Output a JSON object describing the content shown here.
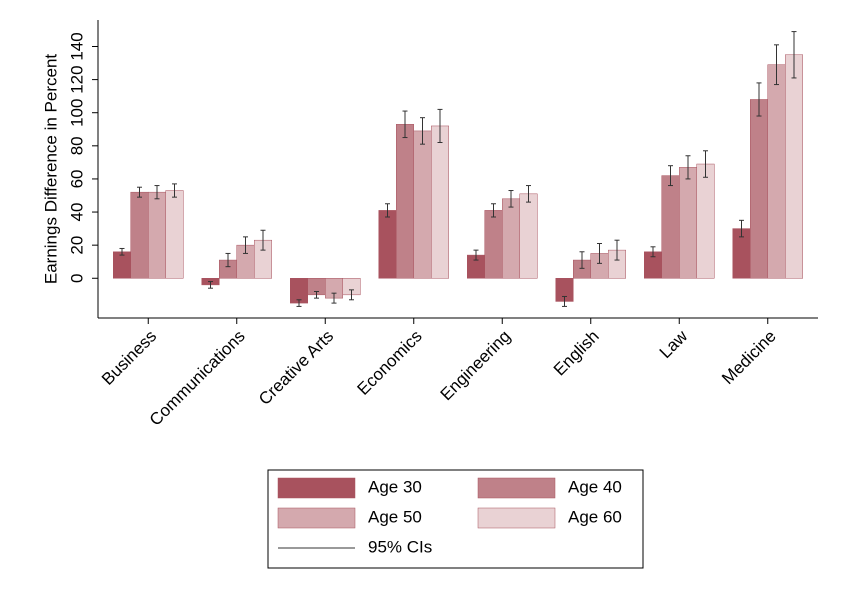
{
  "chart_data": {
    "type": "bar",
    "y_label": "Earnings Difference in Percent",
    "categories": [
      "Business",
      "Communications",
      "Creative Arts",
      "Economics",
      "Engineering",
      "English",
      "Law",
      "Medicine"
    ],
    "series": [
      {
        "name": "Age 30",
        "color": "#a8525e",
        "values": [
          16,
          -4,
          -15,
          41,
          14,
          -14,
          16,
          30
        ],
        "errors": [
          2,
          2,
          2,
          4,
          3,
          3,
          3,
          5
        ]
      },
      {
        "name": "Age 40",
        "color": "#bf8189",
        "values": [
          52,
          11,
          -10,
          93,
          41,
          11,
          62,
          108
        ],
        "errors": [
          3,
          4,
          2,
          8,
          4,
          5,
          6,
          10
        ]
      },
      {
        "name": "Age 50",
        "color": "#d4a9ae",
        "values": [
          52,
          20,
          -12,
          89,
          48,
          15,
          67,
          129
        ],
        "errors": [
          4,
          5,
          3,
          8,
          5,
          6,
          7,
          12
        ]
      },
      {
        "name": "Age 60",
        "color": "#e9d2d4",
        "values": [
          53,
          23,
          -10,
          92,
          51,
          17,
          69,
          135
        ],
        "errors": [
          4,
          6,
          3,
          10,
          5,
          6,
          8,
          14
        ]
      }
    ],
    "ci_label": "95% CIs",
    "ylim": [
      -24,
      156
    ],
    "yticks": [
      0,
      20,
      40,
      60,
      80,
      100,
      120,
      140
    ],
    "grid": false
  }
}
